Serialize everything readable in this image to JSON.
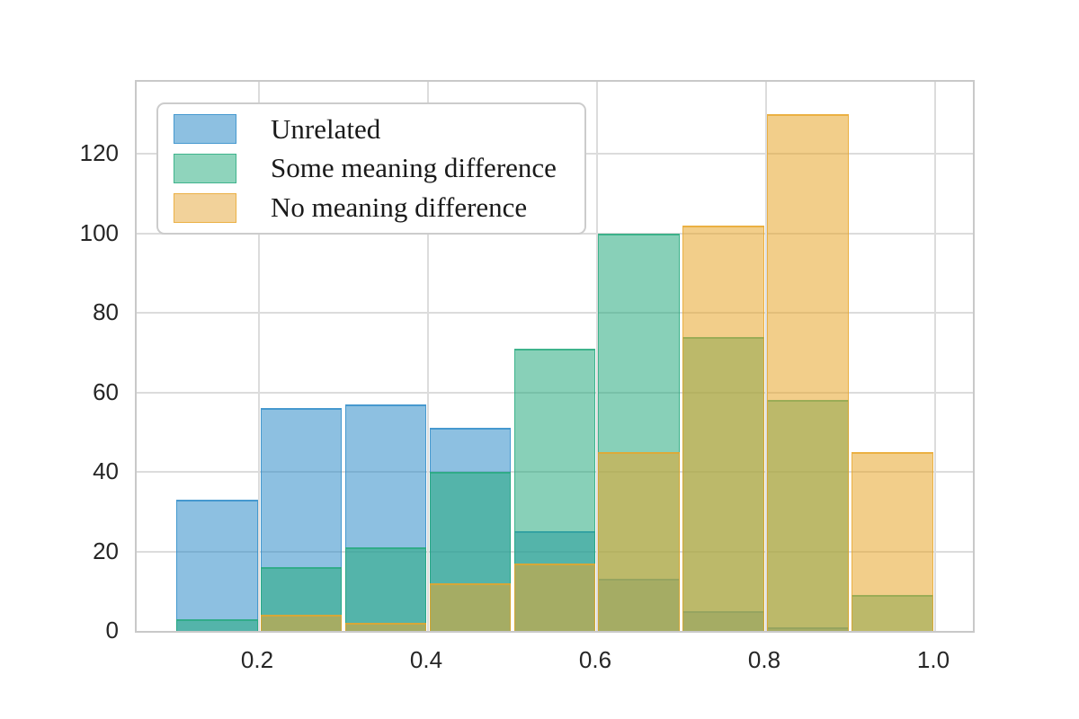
{
  "chart_data": {
    "type": "bar",
    "subtype": "layered-histogram",
    "title": "",
    "xlabel": "",
    "ylabel": "",
    "grid": true,
    "legend_position": "upper left",
    "bin_edges": [
      0.1,
      0.2,
      0.3,
      0.4,
      0.5,
      0.6,
      0.7,
      0.8,
      0.9,
      1.0
    ],
    "series": [
      {
        "name": "Unrelated",
        "values": [
          33,
          56,
          57,
          51,
          25,
          13,
          5,
          1,
          0
        ],
        "fill_rgba": "rgba(47,140,200,0.55)",
        "edge_rgba": "rgba(47,140,200,0.75)",
        "legend_fill": "#8dc0e1"
      },
      {
        "name": "Some meaning difference",
        "values": [
          3,
          16,
          21,
          40,
          71,
          100,
          74,
          58,
          9
        ],
        "fill_rgba": "rgba(38,170,125,0.55)",
        "edge_rgba": "rgba(38,170,125,0.75)",
        "legend_fill": "#8fd4bc"
      },
      {
        "name": "No meaning difference",
        "values": [
          0,
          4,
          2,
          12,
          17,
          45,
          102,
          130,
          45
        ],
        "fill_rgba": "rgba(232,166,42,0.55)",
        "edge_rgba": "rgba(232,166,42,0.75)",
        "legend_fill": "#f2d29a"
      }
    ],
    "xticks": [
      0.2,
      0.4,
      0.6,
      0.8,
      1.0
    ],
    "xtick_labels": [
      "0.2",
      "0.4",
      "0.6",
      "0.8",
      "1.0"
    ],
    "yticks": [
      0,
      20,
      40,
      60,
      80,
      100,
      120
    ],
    "ytick_labels": [
      "0",
      "20",
      "40",
      "60",
      "80",
      "100",
      "120"
    ],
    "xlim": [
      0.0553,
      1.0447
    ],
    "ylim": [
      0,
      138.1
    ]
  },
  "colors": {
    "background": "#ffffff",
    "plot_border": "#c9c9c9",
    "gridline": "#dcdcdc",
    "tick_text": "#262626",
    "legend_border": "#cccccc",
    "legend_text": "#1a1a1a"
  }
}
